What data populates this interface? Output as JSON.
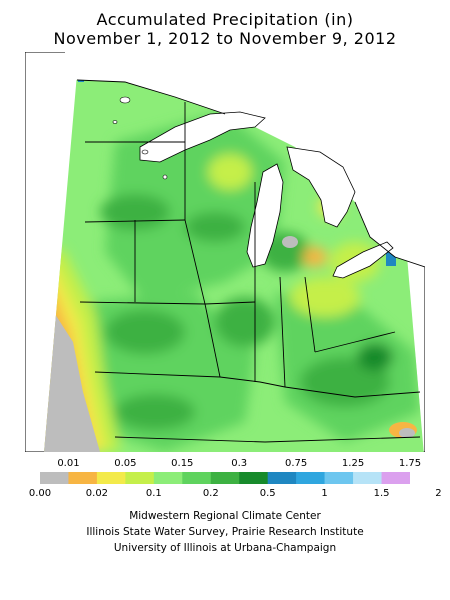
{
  "title": {
    "line1": "Accumulated Precipitation (in)",
    "line2": "November 1, 2012 to November 9, 2012"
  },
  "legend": {
    "top_labels": [
      "0.01",
      "0.05",
      "0.15",
      "0.3",
      "0.75",
      "1.25",
      "1.75"
    ],
    "bottom_labels": [
      "0.00",
      "0.02",
      "0.1",
      "0.2",
      "0.5",
      "1",
      "1.5",
      "2"
    ],
    "colors": [
      "#bdbdbd",
      "#f7b543",
      "#f3ea4a",
      "#c5ef4a",
      "#8ced78",
      "#5fd35e",
      "#3db142",
      "#178a2b",
      "#1f87c1",
      "#2fa6df",
      "#6dc6ef",
      "#b6e3f7",
      "#dba0ee"
    ]
  },
  "footer": {
    "line1": "Midwestern Regional Climate Center",
    "line2": "Illinois State Water Survey, Prairie Research Institute",
    "line3": "University of Illinois at Urbana-Champaign"
  }
}
